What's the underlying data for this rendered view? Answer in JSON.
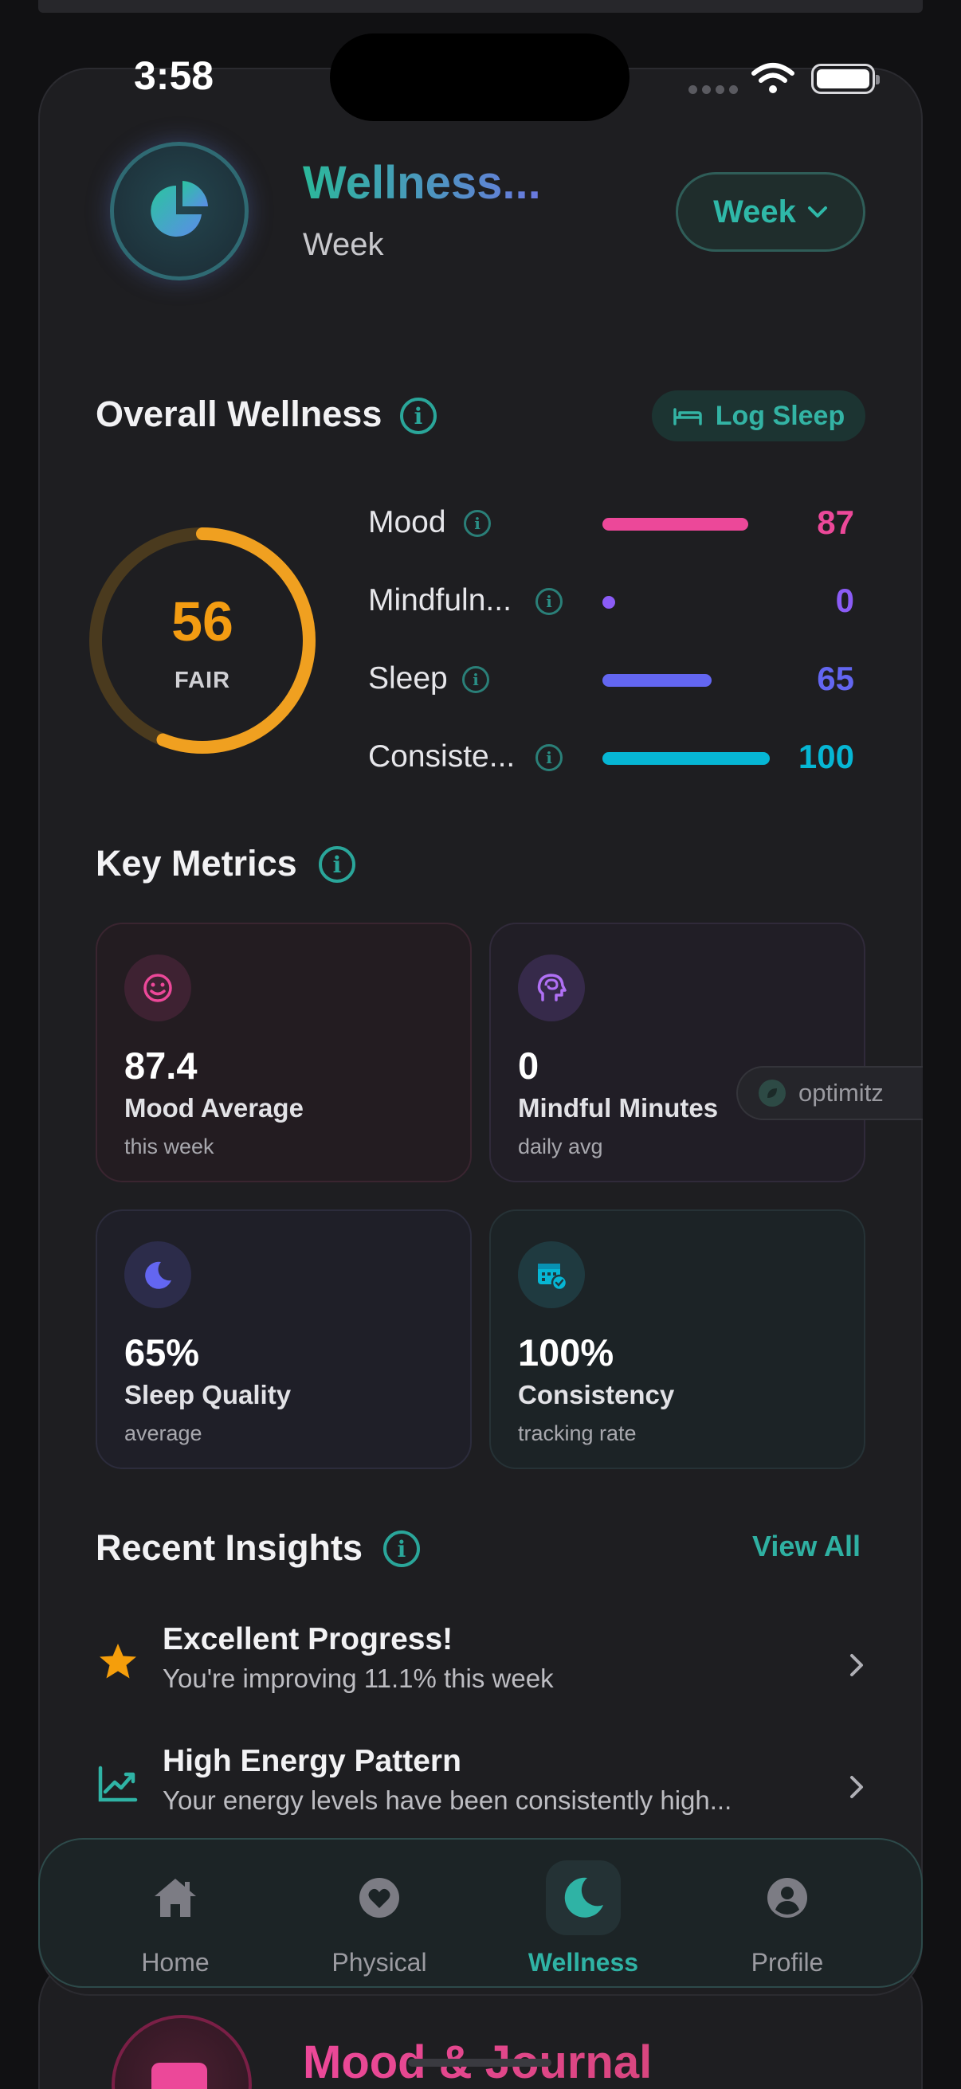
{
  "status_bar": {
    "time": "3:58"
  },
  "header": {
    "title": "Wellness...",
    "subtitle": "Week",
    "period_select": "Week"
  },
  "overall": {
    "title": "Overall Wellness",
    "log_sleep_label": "Log Sleep",
    "score": "56",
    "score_fraction": 0.56,
    "score_label": "FAIR",
    "metrics": [
      {
        "label": "Mood",
        "value": "87",
        "fraction": 0.87,
        "color": "#ec4899"
      },
      {
        "label": "Mindfuln...",
        "value": "0",
        "fraction": 0.0,
        "color": "#8b5cf6"
      },
      {
        "label": "Sleep",
        "value": "65",
        "fraction": 0.65,
        "color": "#6366f1"
      },
      {
        "label": "Consiste...",
        "value": "100",
        "fraction": 1.0,
        "color": "#06b6d4"
      }
    ]
  },
  "key_metrics": {
    "title": "Key Metrics",
    "cards": [
      {
        "value": "87.4",
        "title": "Mood Average",
        "sub": "this week",
        "icon": "smile-icon",
        "color": "#ec4899"
      },
      {
        "value": "0",
        "title": "Mindful Minutes",
        "sub": "daily avg",
        "icon": "brain-head-icon",
        "color": "#a855f7"
      },
      {
        "value": "65%",
        "title": "Sleep Quality",
        "sub": "average",
        "icon": "moon-icon",
        "color": "#6366f1"
      },
      {
        "value": "100%",
        "title": "Consistency",
        "sub": "tracking rate",
        "icon": "calendar-check-icon",
        "color": "#06b6d4"
      }
    ]
  },
  "floating_badge": {
    "label": "optimitz"
  },
  "insights": {
    "title": "Recent Insights",
    "view_all": "View All",
    "items": [
      {
        "title": "Excellent Progress!",
        "desc": "You're improving 11.1% this week",
        "icon": "star-icon",
        "color": "#f59e0b"
      },
      {
        "title": "High Energy Pattern",
        "desc": "Your energy levels have been consistently high...",
        "icon": "trend-chart-icon",
        "color": "#2fb3a5"
      }
    ]
  },
  "next_card": {
    "title": "Mood & Journal"
  },
  "tabbar": {
    "tabs": [
      {
        "label": "Home",
        "icon": "home-icon"
      },
      {
        "label": "Physical",
        "icon": "heart-icon"
      },
      {
        "label": "Wellness",
        "icon": "moon-icon",
        "active": true
      },
      {
        "label": "Profile",
        "icon": "user-icon"
      }
    ]
  },
  "colors": {
    "accent": "#2fb3a5",
    "score": "#f39c12"
  }
}
